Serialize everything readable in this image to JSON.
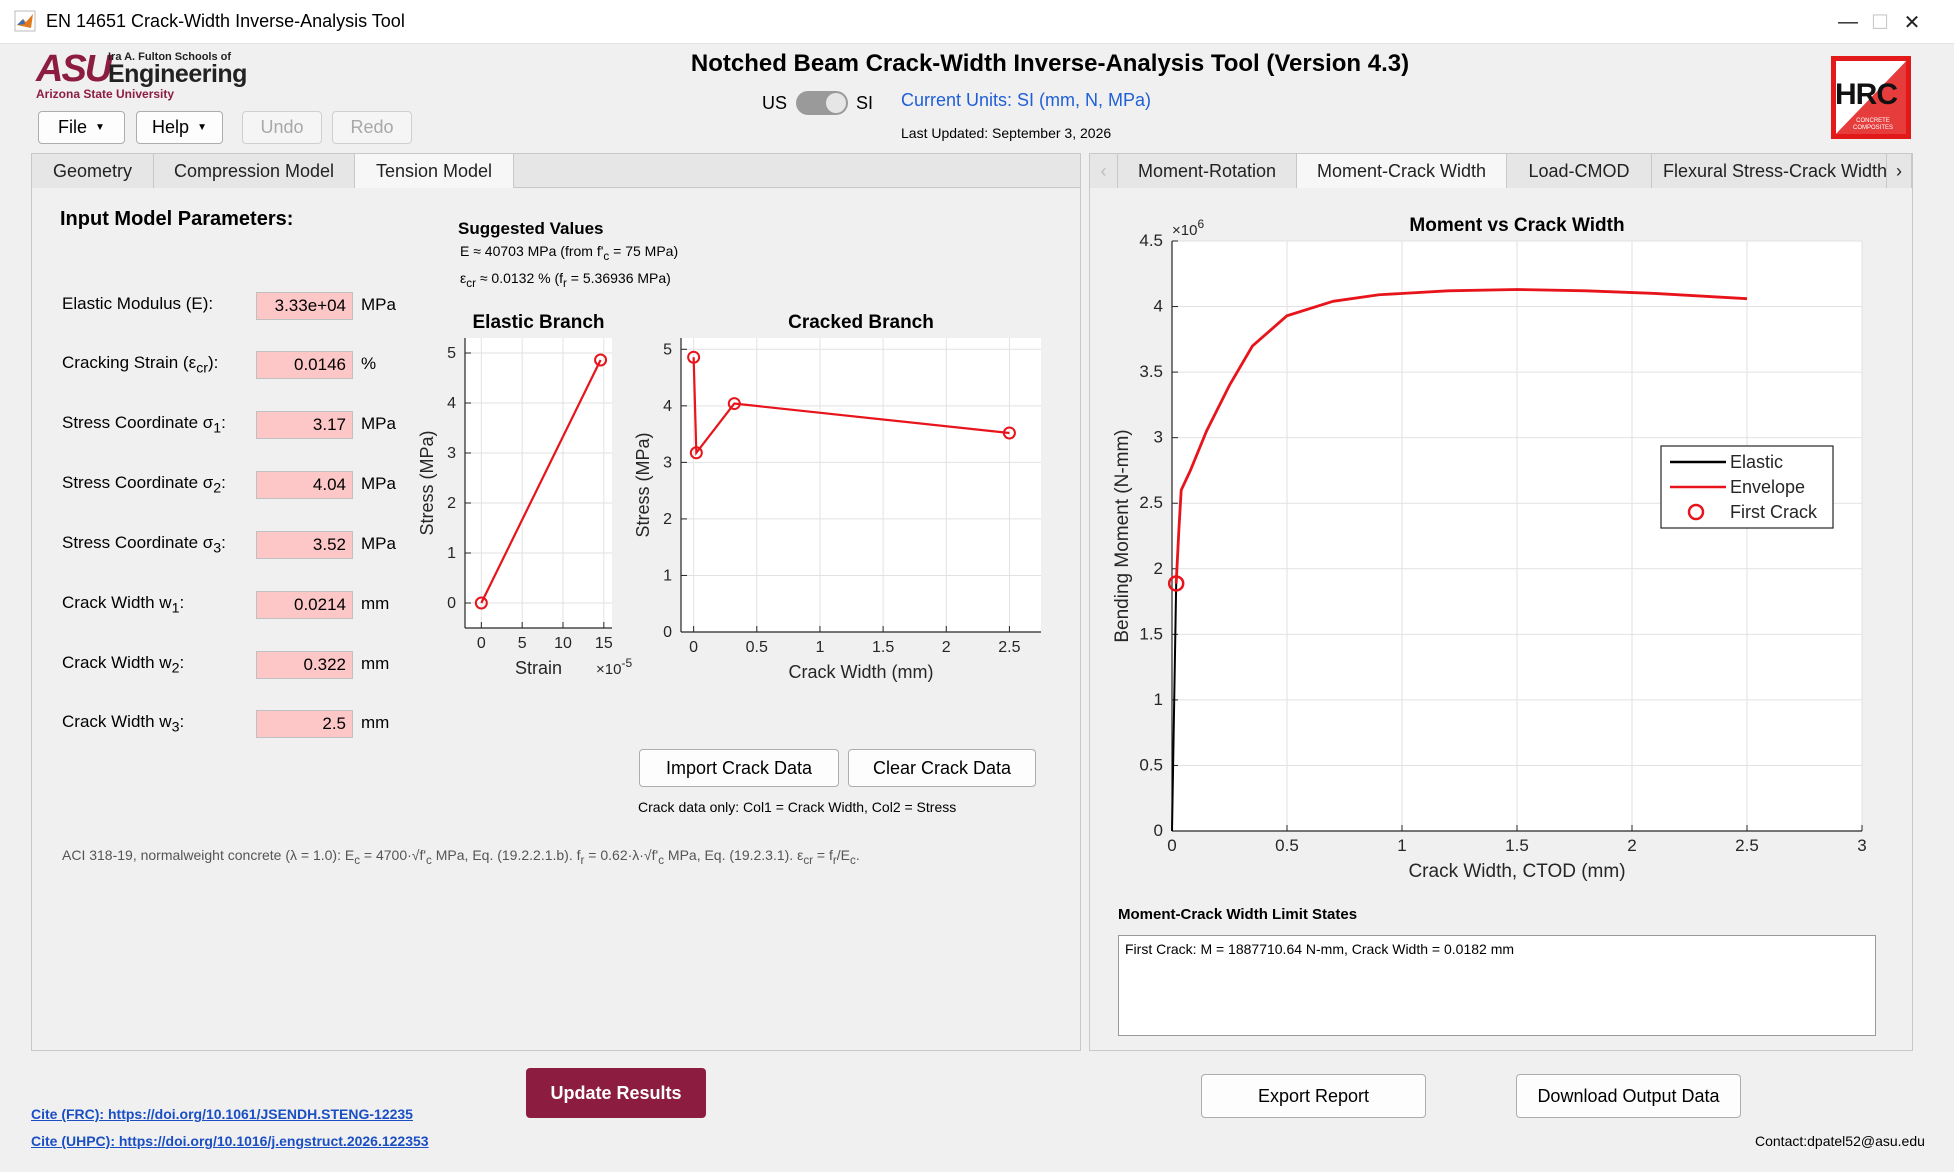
{
  "window": {
    "title": "EN 14651 Crack-Width Inverse-Analysis Tool",
    "minimize": "—",
    "maximize": "☐",
    "close": "✕"
  },
  "header": {
    "asu_word": "ASU",
    "asu_school": "Ira A. Fulton Schools of",
    "asu_eng": "Engineering",
    "asu_univ": "Arizona State University",
    "main_title": "Notched Beam Crack-Width Inverse-Analysis Tool (Version 4.3)",
    "unit_us": "US",
    "unit_si": "SI",
    "current_units": "Current Units: SI (mm, N, MPa)",
    "last_updated": "Last Updated: September 3, 2026",
    "hrc_text": "HRC",
    "hrc_sub": "CONCRETE COMPOSITES"
  },
  "toolbar": {
    "file": "File",
    "help": "Help",
    "undo": "Undo",
    "redo": "Redo"
  },
  "left_tabs": [
    "Geometry",
    "Compression Model",
    "Tension Model"
  ],
  "inputs": {
    "heading": "Input Model Parameters:",
    "rows": [
      {
        "label": "Elastic Modulus (E):",
        "value": "3.33e+04",
        "unit": "MPa"
      },
      {
        "label": "Cracking Strain (ε",
        "sub": "cr",
        "tail": "):",
        "value": "0.0146",
        "unit": "%"
      },
      {
        "label": "Stress Coordinate σ",
        "sub": "1",
        "tail": ":",
        "value": "3.17",
        "unit": "MPa"
      },
      {
        "label": "Stress Coordinate σ",
        "sub": "2",
        "tail": ":",
        "value": "4.04",
        "unit": "MPa"
      },
      {
        "label": "Stress Coordinate σ",
        "sub": "3",
        "tail": ":",
        "value": "3.52",
        "unit": "MPa"
      },
      {
        "label": "Crack Width w",
        "sub": "1",
        "tail": ":",
        "value": "0.0214",
        "unit": "mm"
      },
      {
        "label": "Crack Width w",
        "sub": "2",
        "tail": ":",
        "value": "0.322",
        "unit": "mm"
      },
      {
        "label": "Crack Width w",
        "sub": "3",
        "tail": ":",
        "value": "2.5",
        "unit": "mm"
      }
    ]
  },
  "suggested": {
    "heading": "Suggested Values",
    "line1_a": "E ≈ 40703 MPa  (from f'",
    "line1_sub": "c",
    "line1_b": " = 75 MPa)",
    "line2_a": "ε",
    "line2_sub": "cr",
    "line2_b": " ≈ 0.0132 %  (f",
    "line2_sub2": "r",
    "line2_c": " = 5.36936 MPa)"
  },
  "crack_buttons": {
    "import": "Import Crack Data",
    "clear": "Clear Crack Data",
    "note": "Crack data only: Col1 = Crack Width, Col2 = Stress"
  },
  "aci_note": {
    "a": "ACI 318-19, normalweight concrete (λ = 1.0): E",
    "s1": "c",
    "b": " = 4700·√f'",
    "s2": "c",
    "c": " MPa, Eq. (19.2.2.1.b). f",
    "s3": "r",
    "d": " = 0.62·λ·√f'",
    "s4": "c",
    "e": " MPa, Eq. (19.2.3.1). ε",
    "s5": "cr",
    "f": " = f",
    "s6": "r",
    "g": "/E",
    "s7": "c",
    "h": "."
  },
  "right_tabs": [
    "Moment-Rotation",
    "Moment-Crack Width",
    "Load-CMOD",
    "Flexural Stress-Crack Width"
  ],
  "limit_states": {
    "heading": "Moment-Crack Width Limit States",
    "text": "First Crack: M = 1887710.64 N-mm, Crack Width = 0.0182 mm"
  },
  "bottom": {
    "update": "Update Results",
    "export": "Export Report",
    "download": "Download Output Data",
    "cite1": "Cite (FRC): https://doi.org/10.1061/JSENDH.STENG-12235",
    "cite2": "Cite (UHPC): https://doi.org/10.1016/j.engstruct.2026.122353",
    "contact": "Contact:dpatel52@asu.edu"
  },
  "chart_data": [
    {
      "type": "line",
      "title": "Elastic Branch",
      "xlabel": "Strain",
      "ylabel": "Stress (MPa)",
      "x_multiplier": "×10",
      "x_multiplier_exp": "-5",
      "xlim": [
        -2,
        16
      ],
      "ylim": [
        -0.5,
        5.3
      ],
      "xticks": [
        0,
        5,
        10,
        15
      ],
      "yticks": [
        0,
        1,
        2,
        3,
        4,
        5
      ],
      "series": [
        {
          "x": [
            0,
            14.6
          ],
          "y": [
            0,
            4.86
          ],
          "color": "#e8141b",
          "markers": true
        }
      ]
    },
    {
      "type": "line",
      "title": "Cracked Branch",
      "xlabel": "Crack Width (mm)",
      "ylabel": "Stress (MPa)",
      "xlim": [
        -0.1,
        2.75
      ],
      "ylim": [
        0,
        5.2
      ],
      "xticks": [
        0,
        0.5,
        1,
        1.5,
        2,
        2.5
      ],
      "yticks": [
        0,
        1,
        2,
        3,
        4,
        5
      ],
      "series": [
        {
          "x": [
            0,
            0.0214,
            0.322,
            2.5
          ],
          "y": [
            4.86,
            3.17,
            4.04,
            3.52
          ],
          "color": "#e8141b",
          "markers": true
        }
      ]
    },
    {
      "type": "line",
      "title": "Moment vs Crack Width",
      "xlabel": "Crack Width, CTOD (mm)",
      "ylabel": "Bending Moment (N-mm)",
      "y_multiplier": "×10",
      "y_multiplier_exp": "6",
      "xlim": [
        0,
        3
      ],
      "ylim": [
        0,
        4.5
      ],
      "xticks": [
        0,
        0.5,
        1,
        1.5,
        2,
        2.5,
        3
      ],
      "yticks": [
        0,
        0.5,
        1,
        1.5,
        2,
        2.5,
        3,
        3.5,
        4,
        4.5
      ],
      "grid": true,
      "legend": "right",
      "series": [
        {
          "name": "Elastic",
          "color": "#000000",
          "x": [
            0,
            0.0182
          ],
          "y": [
            0,
            1.888
          ]
        },
        {
          "name": "Envelope",
          "color": "#e8141b",
          "x": [
            0.0182,
            0.03,
            0.04,
            0.08,
            0.15,
            0.25,
            0.35,
            0.5,
            0.7,
            0.9,
            1.2,
            1.5,
            1.8,
            2.1,
            2.3,
            2.5
          ],
          "y": [
            1.888,
            2.3,
            2.6,
            2.75,
            3.05,
            3.4,
            3.7,
            3.93,
            4.04,
            4.09,
            4.12,
            4.13,
            4.12,
            4.1,
            4.08,
            4.06
          ]
        },
        {
          "name": "First Crack",
          "color": "#e8141b",
          "marker": "circle",
          "x": [
            0.0182
          ],
          "y": [
            1.888
          ]
        }
      ]
    }
  ]
}
